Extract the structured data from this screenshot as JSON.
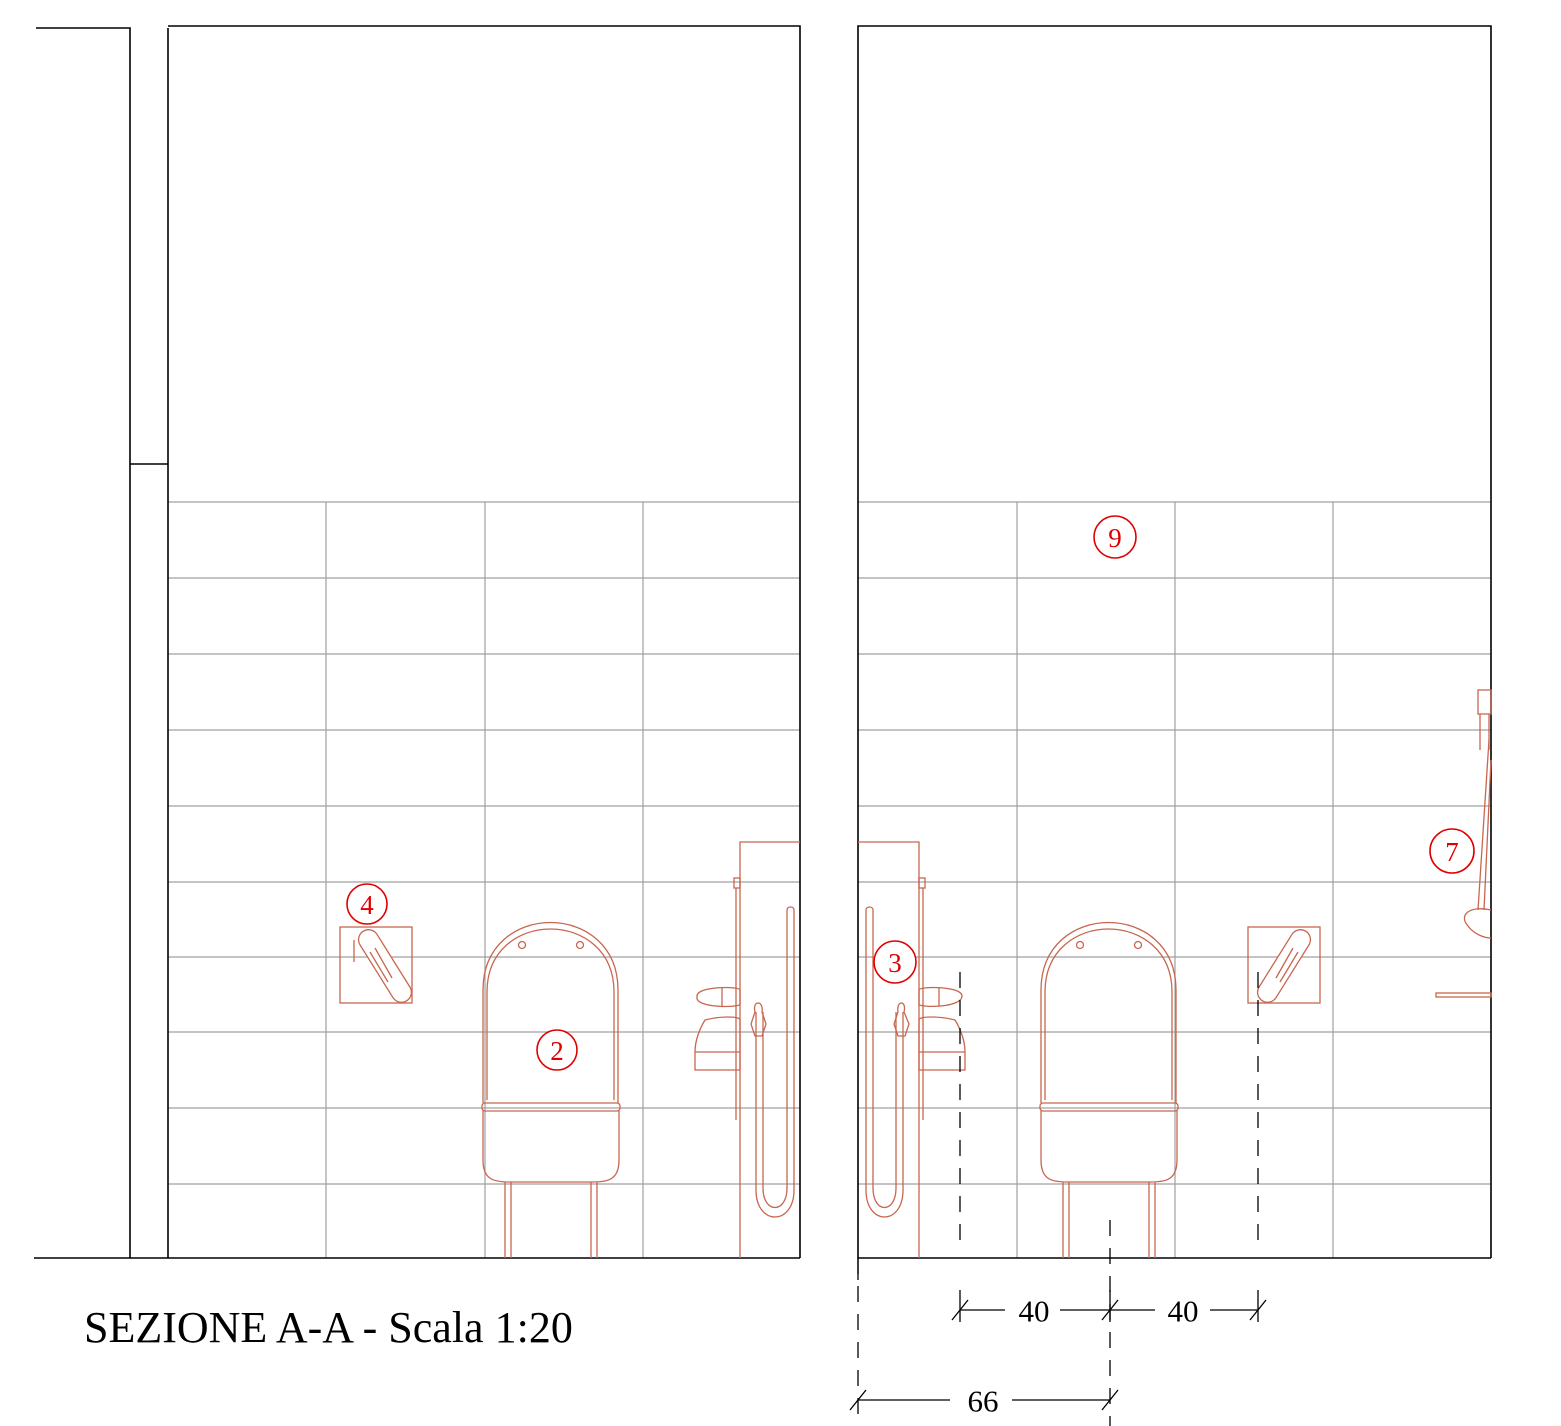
{
  "title": "SEZIONE A-A - Scala 1:20",
  "labels": {
    "tag_2": "2",
    "tag_3": "3",
    "tag_4": "4",
    "tag_7": "7",
    "tag_9": "9"
  },
  "dimensions": {
    "d1": "40",
    "d2": "40",
    "d3": "66"
  },
  "colors": {
    "walls": "#000000",
    "tiles": "#a0a0a0",
    "fixtures": "#c8664f",
    "tags": "#e00000"
  }
}
